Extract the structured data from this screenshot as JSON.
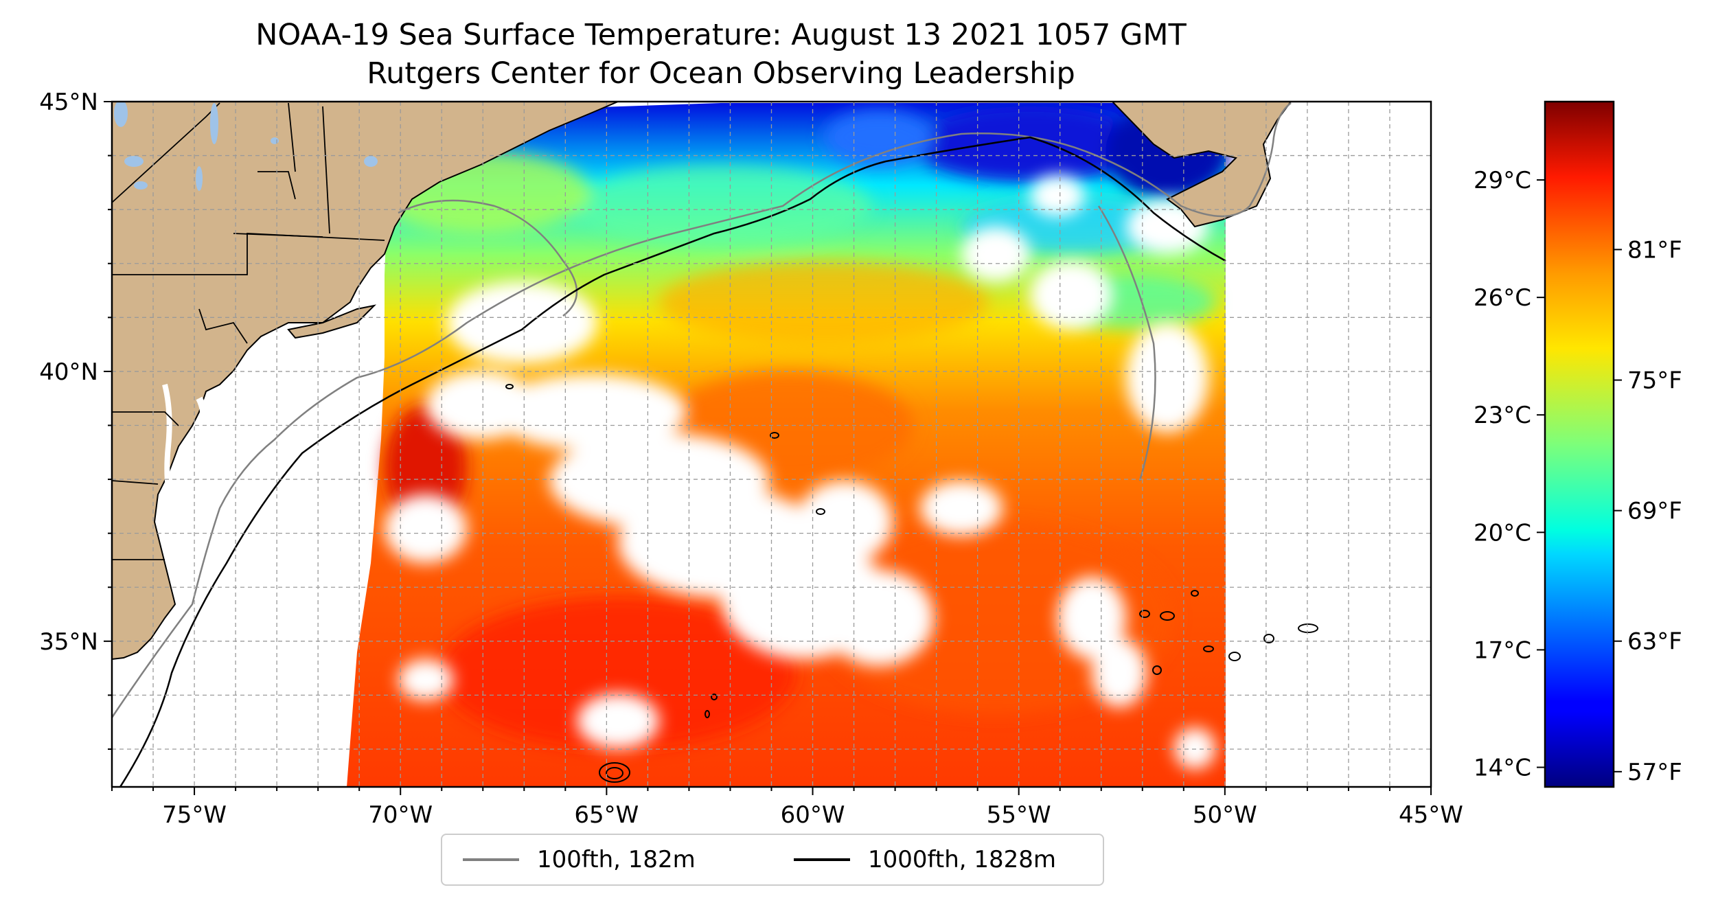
{
  "title": "NOAA-19 Sea Surface Temperature: August 13 2021 1057 GMT",
  "subtitle": "Rutgers Center for Ocean Observing Leadership",
  "map": {
    "lon_range": [
      -77,
      -45
    ],
    "lat_range": [
      32.3,
      45
    ],
    "x_tick_labels": [
      "75°W",
      "70°W",
      "65°W",
      "60°W",
      "55°W",
      "50°W",
      "45°W"
    ],
    "x_tick_values": [
      -75,
      -70,
      -65,
      -60,
      -55,
      -50,
      -45
    ],
    "y_tick_labels": [
      "45°N",
      "40°N",
      "35°N"
    ],
    "y_tick_values": [
      45,
      40,
      35
    ],
    "grid": "dashed, every 1°",
    "land_color": "#d2b48c",
    "lake_color": "#9fc3e8",
    "data_swath_east_edge_lon": -50
  },
  "colorbar": {
    "colormap": "jet",
    "min_c": 13.5,
    "max_c": 31,
    "celsius_labels": [
      "29°C",
      "26°C",
      "23°C",
      "20°C",
      "17°C",
      "14°C"
    ],
    "celsius_values": [
      29,
      26,
      23,
      20,
      17,
      14
    ],
    "fahrenheit_labels": [
      "81°F",
      "75°F",
      "69°F",
      "63°F",
      "57°F"
    ],
    "fahrenheit_values": [
      81,
      75,
      69,
      63,
      57
    ]
  },
  "legend": {
    "items": [
      {
        "label": "100fth, 182m",
        "color": "#808080"
      },
      {
        "label": "1000fth, 1828m",
        "color": "#000000"
      }
    ]
  }
}
